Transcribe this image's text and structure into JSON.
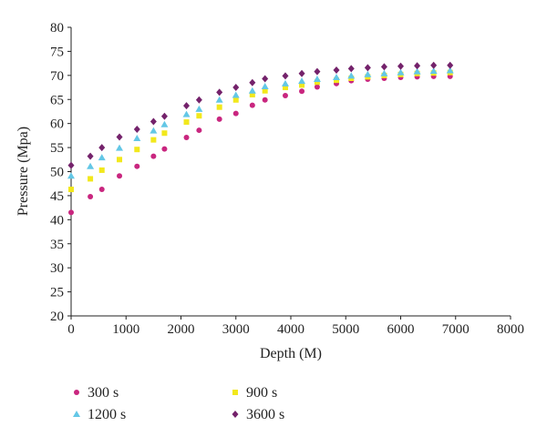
{
  "chart_data": {
    "type": "scatter",
    "title": "",
    "xlabel": "Depth (M)",
    "ylabel": "Pressure (Mpa)",
    "xlim": [
      0,
      8000
    ],
    "ylim": [
      20,
      80
    ],
    "x_ticks": [
      "0",
      "1000",
      "2000",
      "3000",
      "4000",
      "5000",
      "6000",
      "7000",
      "8000"
    ],
    "y_ticks": [
      "20",
      "25",
      "30",
      "35",
      "40",
      "45",
      "50",
      "55",
      "60",
      "65",
      "70",
      "75",
      "80"
    ],
    "grid": false,
    "legend_position": "bottom",
    "series": [
      {
        "name": "300 s",
        "marker": "circle",
        "color": "#c9267f",
        "points": [
          [
            0,
            41.5
          ],
          [
            350,
            44.8
          ],
          [
            560,
            46.3
          ],
          [
            880,
            49.1
          ],
          [
            1200,
            51.1
          ],
          [
            1500,
            53.2
          ],
          [
            1700,
            54.7
          ],
          [
            2100,
            57.1
          ],
          [
            2330,
            58.6
          ],
          [
            2700,
            60.9
          ],
          [
            3000,
            62.1
          ],
          [
            3300,
            63.8
          ],
          [
            3530,
            64.9
          ],
          [
            3900,
            65.8
          ],
          [
            4200,
            66.7
          ],
          [
            4480,
            67.6
          ],
          [
            4830,
            68.3
          ],
          [
            5100,
            68.9
          ],
          [
            5400,
            69.2
          ],
          [
            5700,
            69.4
          ],
          [
            6000,
            69.6
          ],
          [
            6300,
            69.7
          ],
          [
            6600,
            69.8
          ],
          [
            6900,
            69.8
          ]
        ]
      },
      {
        "name": "900 s",
        "marker": "square",
        "color": "#f2e81c",
        "points": [
          [
            0,
            46.3
          ],
          [
            350,
            48.5
          ],
          [
            560,
            50.3
          ],
          [
            880,
            52.5
          ],
          [
            1200,
            54.6
          ],
          [
            1500,
            56.6
          ],
          [
            1700,
            58.0
          ],
          [
            2100,
            60.3
          ],
          [
            2330,
            61.6
          ],
          [
            2700,
            63.4
          ],
          [
            3000,
            64.9
          ],
          [
            3300,
            66.0
          ],
          [
            3530,
            66.8
          ],
          [
            3900,
            67.5
          ],
          [
            4200,
            68.0
          ],
          [
            4480,
            68.6
          ],
          [
            4830,
            69.0
          ],
          [
            5100,
            69.4
          ],
          [
            5400,
            69.7
          ],
          [
            5700,
            70.0
          ],
          [
            6000,
            70.2
          ],
          [
            6300,
            70.4
          ],
          [
            6600,
            70.5
          ],
          [
            6900,
            70.6
          ]
        ]
      },
      {
        "name": "1200 s",
        "marker": "triangle",
        "color": "#63c7e6",
        "points": [
          [
            0,
            49.1
          ],
          [
            350,
            51.1
          ],
          [
            560,
            52.9
          ],
          [
            880,
            54.9
          ],
          [
            1200,
            56.9
          ],
          [
            1500,
            58.5
          ],
          [
            1700,
            59.8
          ],
          [
            2100,
            61.9
          ],
          [
            2330,
            63.0
          ],
          [
            2700,
            64.9
          ],
          [
            3000,
            65.9
          ],
          [
            3300,
            66.8
          ],
          [
            3530,
            67.7
          ],
          [
            3900,
            68.3
          ],
          [
            4200,
            68.8
          ],
          [
            4480,
            69.2
          ],
          [
            4830,
            69.6
          ],
          [
            5100,
            69.9
          ],
          [
            5400,
            70.2
          ],
          [
            5700,
            70.4
          ],
          [
            6000,
            70.6
          ],
          [
            6300,
            70.8
          ],
          [
            6600,
            70.9
          ],
          [
            6900,
            71.0
          ]
        ]
      },
      {
        "name": "3600 s",
        "marker": "diamond",
        "color": "#74226b",
        "points": [
          [
            0,
            51.3
          ],
          [
            350,
            53.2
          ],
          [
            560,
            55.0
          ],
          [
            880,
            57.2
          ],
          [
            1200,
            58.8
          ],
          [
            1500,
            60.4
          ],
          [
            1700,
            61.5
          ],
          [
            2100,
            63.7
          ],
          [
            2330,
            64.9
          ],
          [
            2700,
            66.5
          ],
          [
            3000,
            67.5
          ],
          [
            3300,
            68.5
          ],
          [
            3530,
            69.3
          ],
          [
            3900,
            69.9
          ],
          [
            4200,
            70.4
          ],
          [
            4480,
            70.8
          ],
          [
            4830,
            71.1
          ],
          [
            5100,
            71.4
          ],
          [
            5400,
            71.6
          ],
          [
            5700,
            71.8
          ],
          [
            6000,
            71.9
          ],
          [
            6300,
            72.0
          ],
          [
            6600,
            72.1
          ],
          [
            6900,
            72.1
          ]
        ]
      }
    ]
  }
}
